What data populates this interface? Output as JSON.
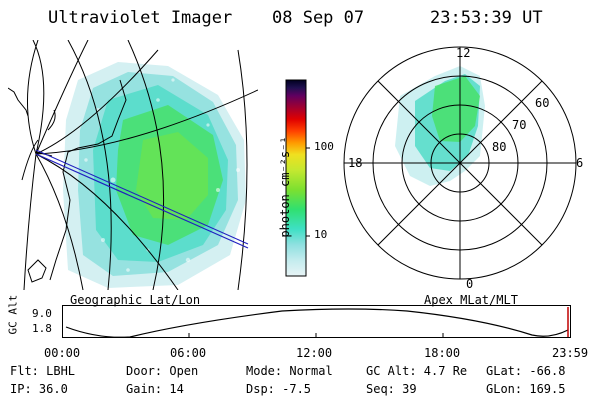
{
  "header": {
    "instrument": "Ultraviolet Imager",
    "date": "08 Sep 07",
    "time": "23:53:39 UT"
  },
  "geo_panel": {
    "label": "Geographic Lat/Lon"
  },
  "colorbar": {
    "unit_label": "photon cm⁻²s⁻¹",
    "ticks": [
      "100",
      "10"
    ],
    "colors": [
      "#e8f4f6",
      "#c4ecee",
      "#8fe0e0",
      "#3ee0c4",
      "#30e070",
      "#7ce030",
      "#c4e830",
      "#f0e020",
      "#ff9a00",
      "#ff4000",
      "#e00000",
      "#a00030",
      "#600060",
      "#201050",
      "#000020"
    ]
  },
  "polar_panel": {
    "label": "Apex MLat/MLT",
    "mlt_labels": {
      "top": "12",
      "left": "18",
      "right": "6",
      "bottom": "0"
    },
    "lat_labels": [
      "60",
      "70",
      "80"
    ]
  },
  "alt_plot": {
    "axis_title": "GC Alt",
    "y_ticks": [
      "9.0",
      "1.8"
    ],
    "x_ticks": [
      "00:00",
      "06:00",
      "12:00",
      "18:00",
      "23:59"
    ]
  },
  "status": {
    "flt": "Flt: LBHL",
    "ip": "IP: 36.0",
    "door": "Door: Open",
    "gain": "Gain: 14",
    "mode": "Mode: Normal",
    "dsp": "Dsp:  -7.5",
    "gc_alt": "GC Alt: 4.7 Re",
    "seq": "Seq: 39",
    "glat": "GLat: -66.8",
    "glon": "GLon: 169.5"
  },
  "colors": {
    "cyan": "#4ee0d6",
    "green": "#3ee060",
    "pale": "#c8eef0",
    "track": "#2020c0"
  }
}
